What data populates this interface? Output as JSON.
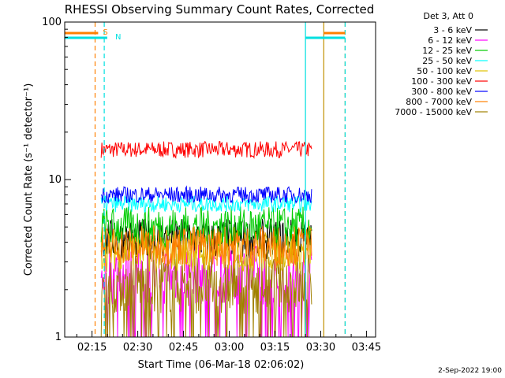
{
  "chart_data": {
    "type": "line",
    "title": "RHESSI Observing Summary Count Rates, Corrected",
    "xlabel": "Start Time (06-Mar-18 02:06:02)",
    "ylabel": "Corrected Count Rate (s⁻¹ detector⁻¹)",
    "x_range": [
      "02:06:02",
      "03:48:00"
    ],
    "ylim": [
      1,
      100
    ],
    "y_scale": "log",
    "x_ticks": [
      "02:15",
      "02:30",
      "02:45",
      "03:00",
      "03:15",
      "03:30",
      "03:45"
    ],
    "y_ticks": [
      "1",
      "10",
      "100"
    ],
    "data_window": [
      "02:18",
      "03:27"
    ],
    "legend_title": "Det 3, Att 0",
    "legend_position": "right",
    "series": [
      {
        "name": "3 - 6 keV",
        "color": "#000000",
        "typical": 4.2
      },
      {
        "name": "6 - 12 keV",
        "color": "#ff00ff",
        "typical": 2.5
      },
      {
        "name": "12 - 25 keV",
        "color": "#00cc00",
        "typical": 5.0
      },
      {
        "name": "25 - 50 keV",
        "color": "#00ffff",
        "typical": 7.0
      },
      {
        "name": "50 - 100 keV",
        "color": "#e0c000",
        "typical": 3.5
      },
      {
        "name": "100 - 300 keV",
        "color": "#ff0000",
        "typical": 15.5
      },
      {
        "name": "300 - 800 keV",
        "color": "#0000ff",
        "typical": 8.0
      },
      {
        "name": "800 - 7000 keV",
        "color": "#ff8000",
        "typical": 3.8
      },
      {
        "name": "7000 - 15000 keV",
        "color": "#a08000",
        "typical": 2.2
      }
    ],
    "flags": [
      {
        "label": "S",
        "color": "#ff8000",
        "segments": [
          [
            "02:06",
            "02:17"
          ],
          [
            "03:31",
            "03:38"
          ]
        ]
      },
      {
        "label": "N",
        "color": "#00e0e0",
        "segments": [
          [
            "02:06",
            "02:20"
          ],
          [
            "03:25",
            "03:38"
          ]
        ]
      }
    ],
    "vertical_markers": [
      {
        "time": "02:16",
        "color": "#ff8000",
        "style": "dashed"
      },
      {
        "time": "02:19",
        "color": "#00e0e0",
        "style": "dashed"
      },
      {
        "time": "03:25",
        "color": "#00e0e0",
        "style": "solid"
      },
      {
        "time": "03:31",
        "color": "#c09000",
        "style": "solid"
      },
      {
        "time": "03:38",
        "color": "#ff8000",
        "style": "dashed"
      },
      {
        "time": "03:38",
        "color": "#00e0e0",
        "style": "dashed"
      }
    ]
  },
  "footer": {
    "timestamp": "2-Sep-2022 19:00"
  }
}
